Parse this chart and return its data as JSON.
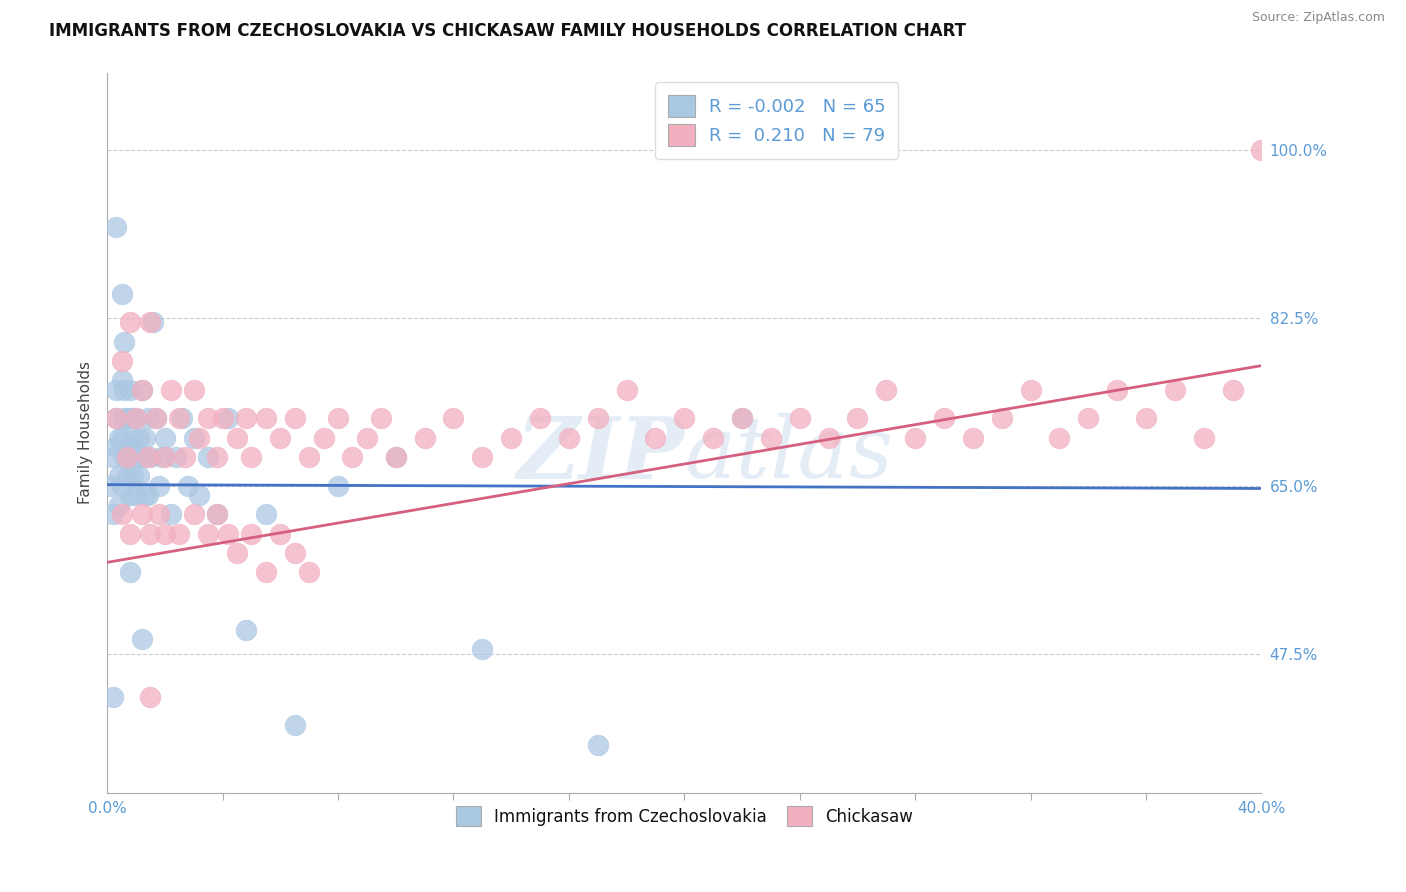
{
  "title": "IMMIGRANTS FROM CZECHOSLOVAKIA VS CHICKASAW FAMILY HOUSEHOLDS CORRELATION CHART",
  "source": "Source: ZipAtlas.com",
  "ylabel": "Family Households",
  "ytick_labels": [
    "47.5%",
    "65.0%",
    "82.5%",
    "100.0%"
  ],
  "ytick_values": [
    0.475,
    0.65,
    0.825,
    1.0
  ],
  "xlim": [
    0.0,
    0.4
  ],
  "ylim": [
    0.33,
    1.08
  ],
  "legend_blue_label": "Immigrants from Czechoslovakia",
  "legend_pink_label": "Chickasaw",
  "R_blue": -0.002,
  "N_blue": 65,
  "R_pink": 0.21,
  "N_pink": 79,
  "blue_color": "#abc8e2",
  "pink_color": "#f2afc0",
  "blue_line_color": "#4472c4",
  "pink_line_color": "#d45f7f",
  "watermark": "ZIPatlas",
  "blue_scatter_x": [
    0.001,
    0.002,
    0.002,
    0.003,
    0.003,
    0.003,
    0.004,
    0.004,
    0.004,
    0.005,
    0.005,
    0.005,
    0.006,
    0.006,
    0.006,
    0.006,
    0.007,
    0.007,
    0.007,
    0.008,
    0.008,
    0.008,
    0.008,
    0.009,
    0.009,
    0.009,
    0.01,
    0.01,
    0.01,
    0.011,
    0.011,
    0.012,
    0.012,
    0.013,
    0.013,
    0.014,
    0.014,
    0.015,
    0.016,
    0.017,
    0.018,
    0.019,
    0.02,
    0.022,
    0.024,
    0.026,
    0.028,
    0.03,
    0.032,
    0.035,
    0.038,
    0.042,
    0.048,
    0.055,
    0.065,
    0.08,
    0.1,
    0.13,
    0.17,
    0.22,
    0.005,
    0.008,
    0.012,
    0.003,
    0.002
  ],
  "blue_scatter_y": [
    0.65,
    0.62,
    0.68,
    0.75,
    0.72,
    0.69,
    0.66,
    0.7,
    0.63,
    0.76,
    0.7,
    0.65,
    0.72,
    0.68,
    0.75,
    0.8,
    0.66,
    0.72,
    0.68,
    0.64,
    0.69,
    0.75,
    0.72,
    0.66,
    0.7,
    0.72,
    0.64,
    0.68,
    0.72,
    0.66,
    0.7,
    0.75,
    0.68,
    0.64,
    0.7,
    0.72,
    0.64,
    0.68,
    0.82,
    0.72,
    0.65,
    0.68,
    0.7,
    0.62,
    0.68,
    0.72,
    0.65,
    0.7,
    0.64,
    0.68,
    0.62,
    0.72,
    0.5,
    0.62,
    0.4,
    0.65,
    0.68,
    0.48,
    0.38,
    0.72,
    0.85,
    0.56,
    0.49,
    0.92,
    0.43
  ],
  "pink_scatter_x": [
    0.003,
    0.005,
    0.007,
    0.008,
    0.01,
    0.012,
    0.014,
    0.015,
    0.017,
    0.02,
    0.022,
    0.025,
    0.027,
    0.03,
    0.032,
    0.035,
    0.038,
    0.04,
    0.045,
    0.048,
    0.05,
    0.055,
    0.06,
    0.065,
    0.07,
    0.075,
    0.08,
    0.085,
    0.09,
    0.095,
    0.1,
    0.11,
    0.12,
    0.13,
    0.14,
    0.15,
    0.16,
    0.17,
    0.18,
    0.19,
    0.2,
    0.21,
    0.22,
    0.23,
    0.24,
    0.25,
    0.26,
    0.27,
    0.28,
    0.29,
    0.3,
    0.31,
    0.32,
    0.33,
    0.34,
    0.35,
    0.36,
    0.37,
    0.38,
    0.39,
    0.005,
    0.008,
    0.012,
    0.015,
    0.018,
    0.02,
    0.025,
    0.03,
    0.035,
    0.038,
    0.042,
    0.045,
    0.05,
    0.055,
    0.06,
    0.065,
    0.07,
    0.015,
    0.4
  ],
  "pink_scatter_y": [
    0.72,
    0.78,
    0.68,
    0.82,
    0.72,
    0.75,
    0.68,
    0.82,
    0.72,
    0.68,
    0.75,
    0.72,
    0.68,
    0.75,
    0.7,
    0.72,
    0.68,
    0.72,
    0.7,
    0.72,
    0.68,
    0.72,
    0.7,
    0.72,
    0.68,
    0.7,
    0.72,
    0.68,
    0.7,
    0.72,
    0.68,
    0.7,
    0.72,
    0.68,
    0.7,
    0.72,
    0.7,
    0.72,
    0.75,
    0.7,
    0.72,
    0.7,
    0.72,
    0.7,
    0.72,
    0.7,
    0.72,
    0.75,
    0.7,
    0.72,
    0.7,
    0.72,
    0.75,
    0.7,
    0.72,
    0.75,
    0.72,
    0.75,
    0.7,
    0.75,
    0.62,
    0.6,
    0.62,
    0.6,
    0.62,
    0.6,
    0.6,
    0.62,
    0.6,
    0.62,
    0.6,
    0.58,
    0.6,
    0.56,
    0.6,
    0.58,
    0.56,
    0.43,
    1.0
  ]
}
